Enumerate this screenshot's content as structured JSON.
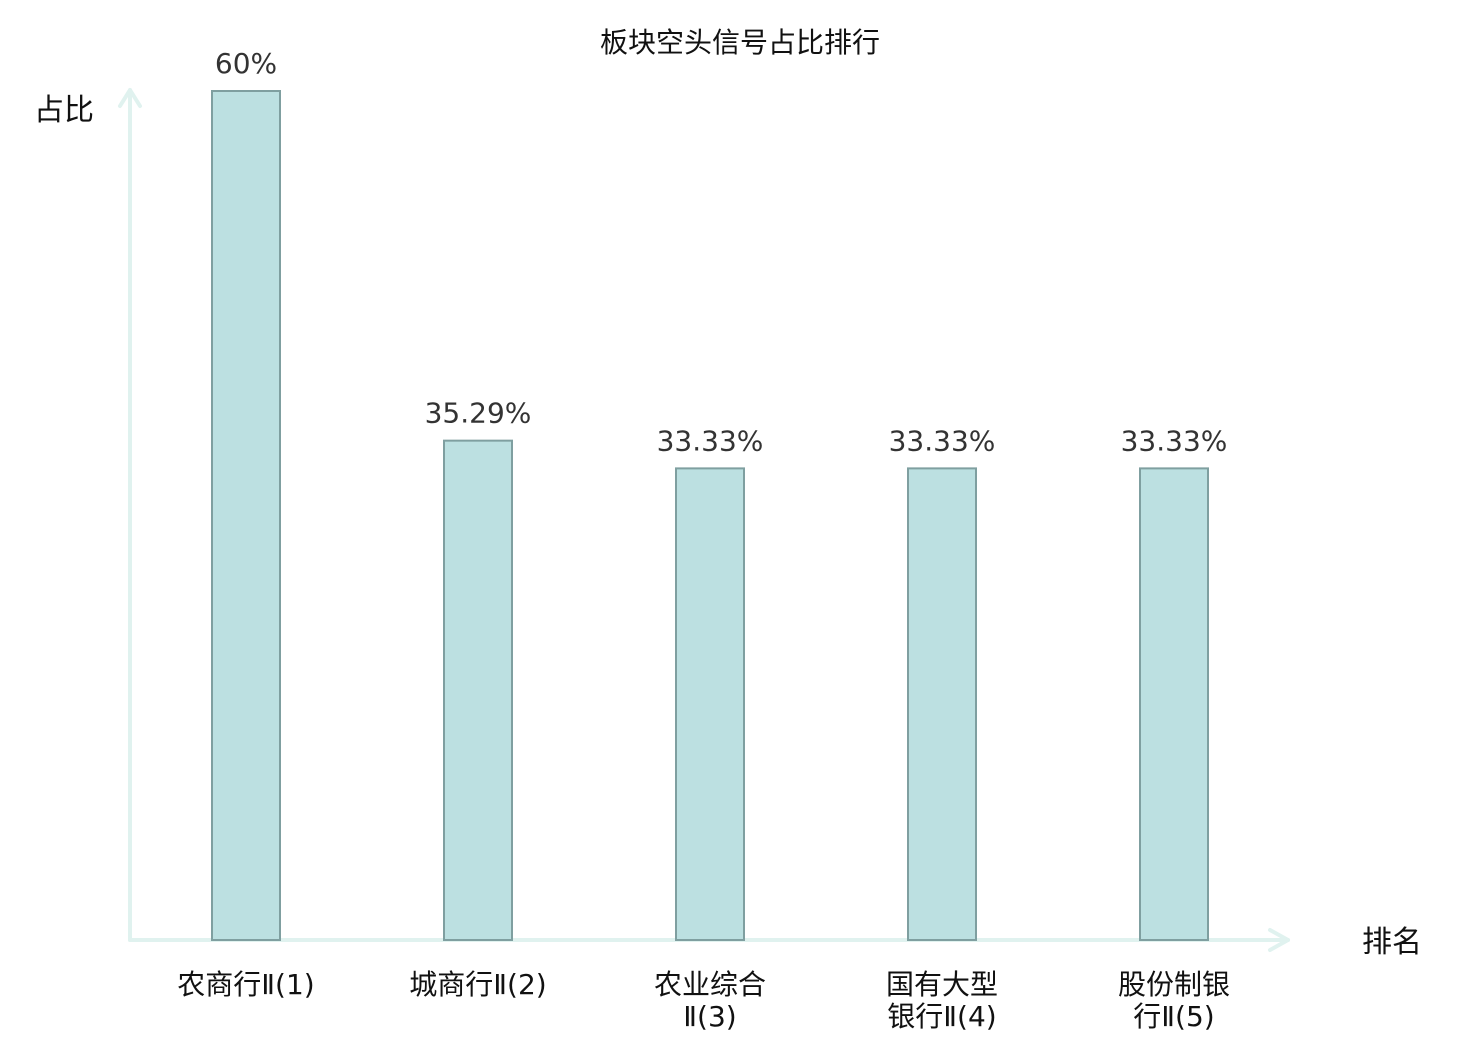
{
  "chart_data": {
    "type": "bar",
    "title": "板块空头信号占比排行",
    "ylabel": "占比",
    "xlabel": "排名",
    "ylim": [
      0,
      60
    ],
    "grid": false,
    "categories": [
      [
        "农商行Ⅱ(1)"
      ],
      [
        "城商行Ⅱ(2)"
      ],
      [
        "农业综合",
        "Ⅱ(3)"
      ],
      [
        "国有大型",
        "银行Ⅱ(4)"
      ],
      [
        "股份制银",
        "行Ⅱ(5)"
      ]
    ],
    "values": [
      60,
      35.29,
      33.33,
      33.33,
      33.33
    ],
    "value_labels": [
      "60%",
      "35.29%",
      "33.33%",
      "33.33%",
      "33.33%"
    ],
    "highlight_index": 3,
    "colors": {
      "bar_fill": "#bce0e1",
      "bar_stroke": "#7f9fa0",
      "axis": "#e0f2ef",
      "highlight_label": "#dd0000",
      "label": "#111111",
      "value_label": "#333333"
    }
  }
}
